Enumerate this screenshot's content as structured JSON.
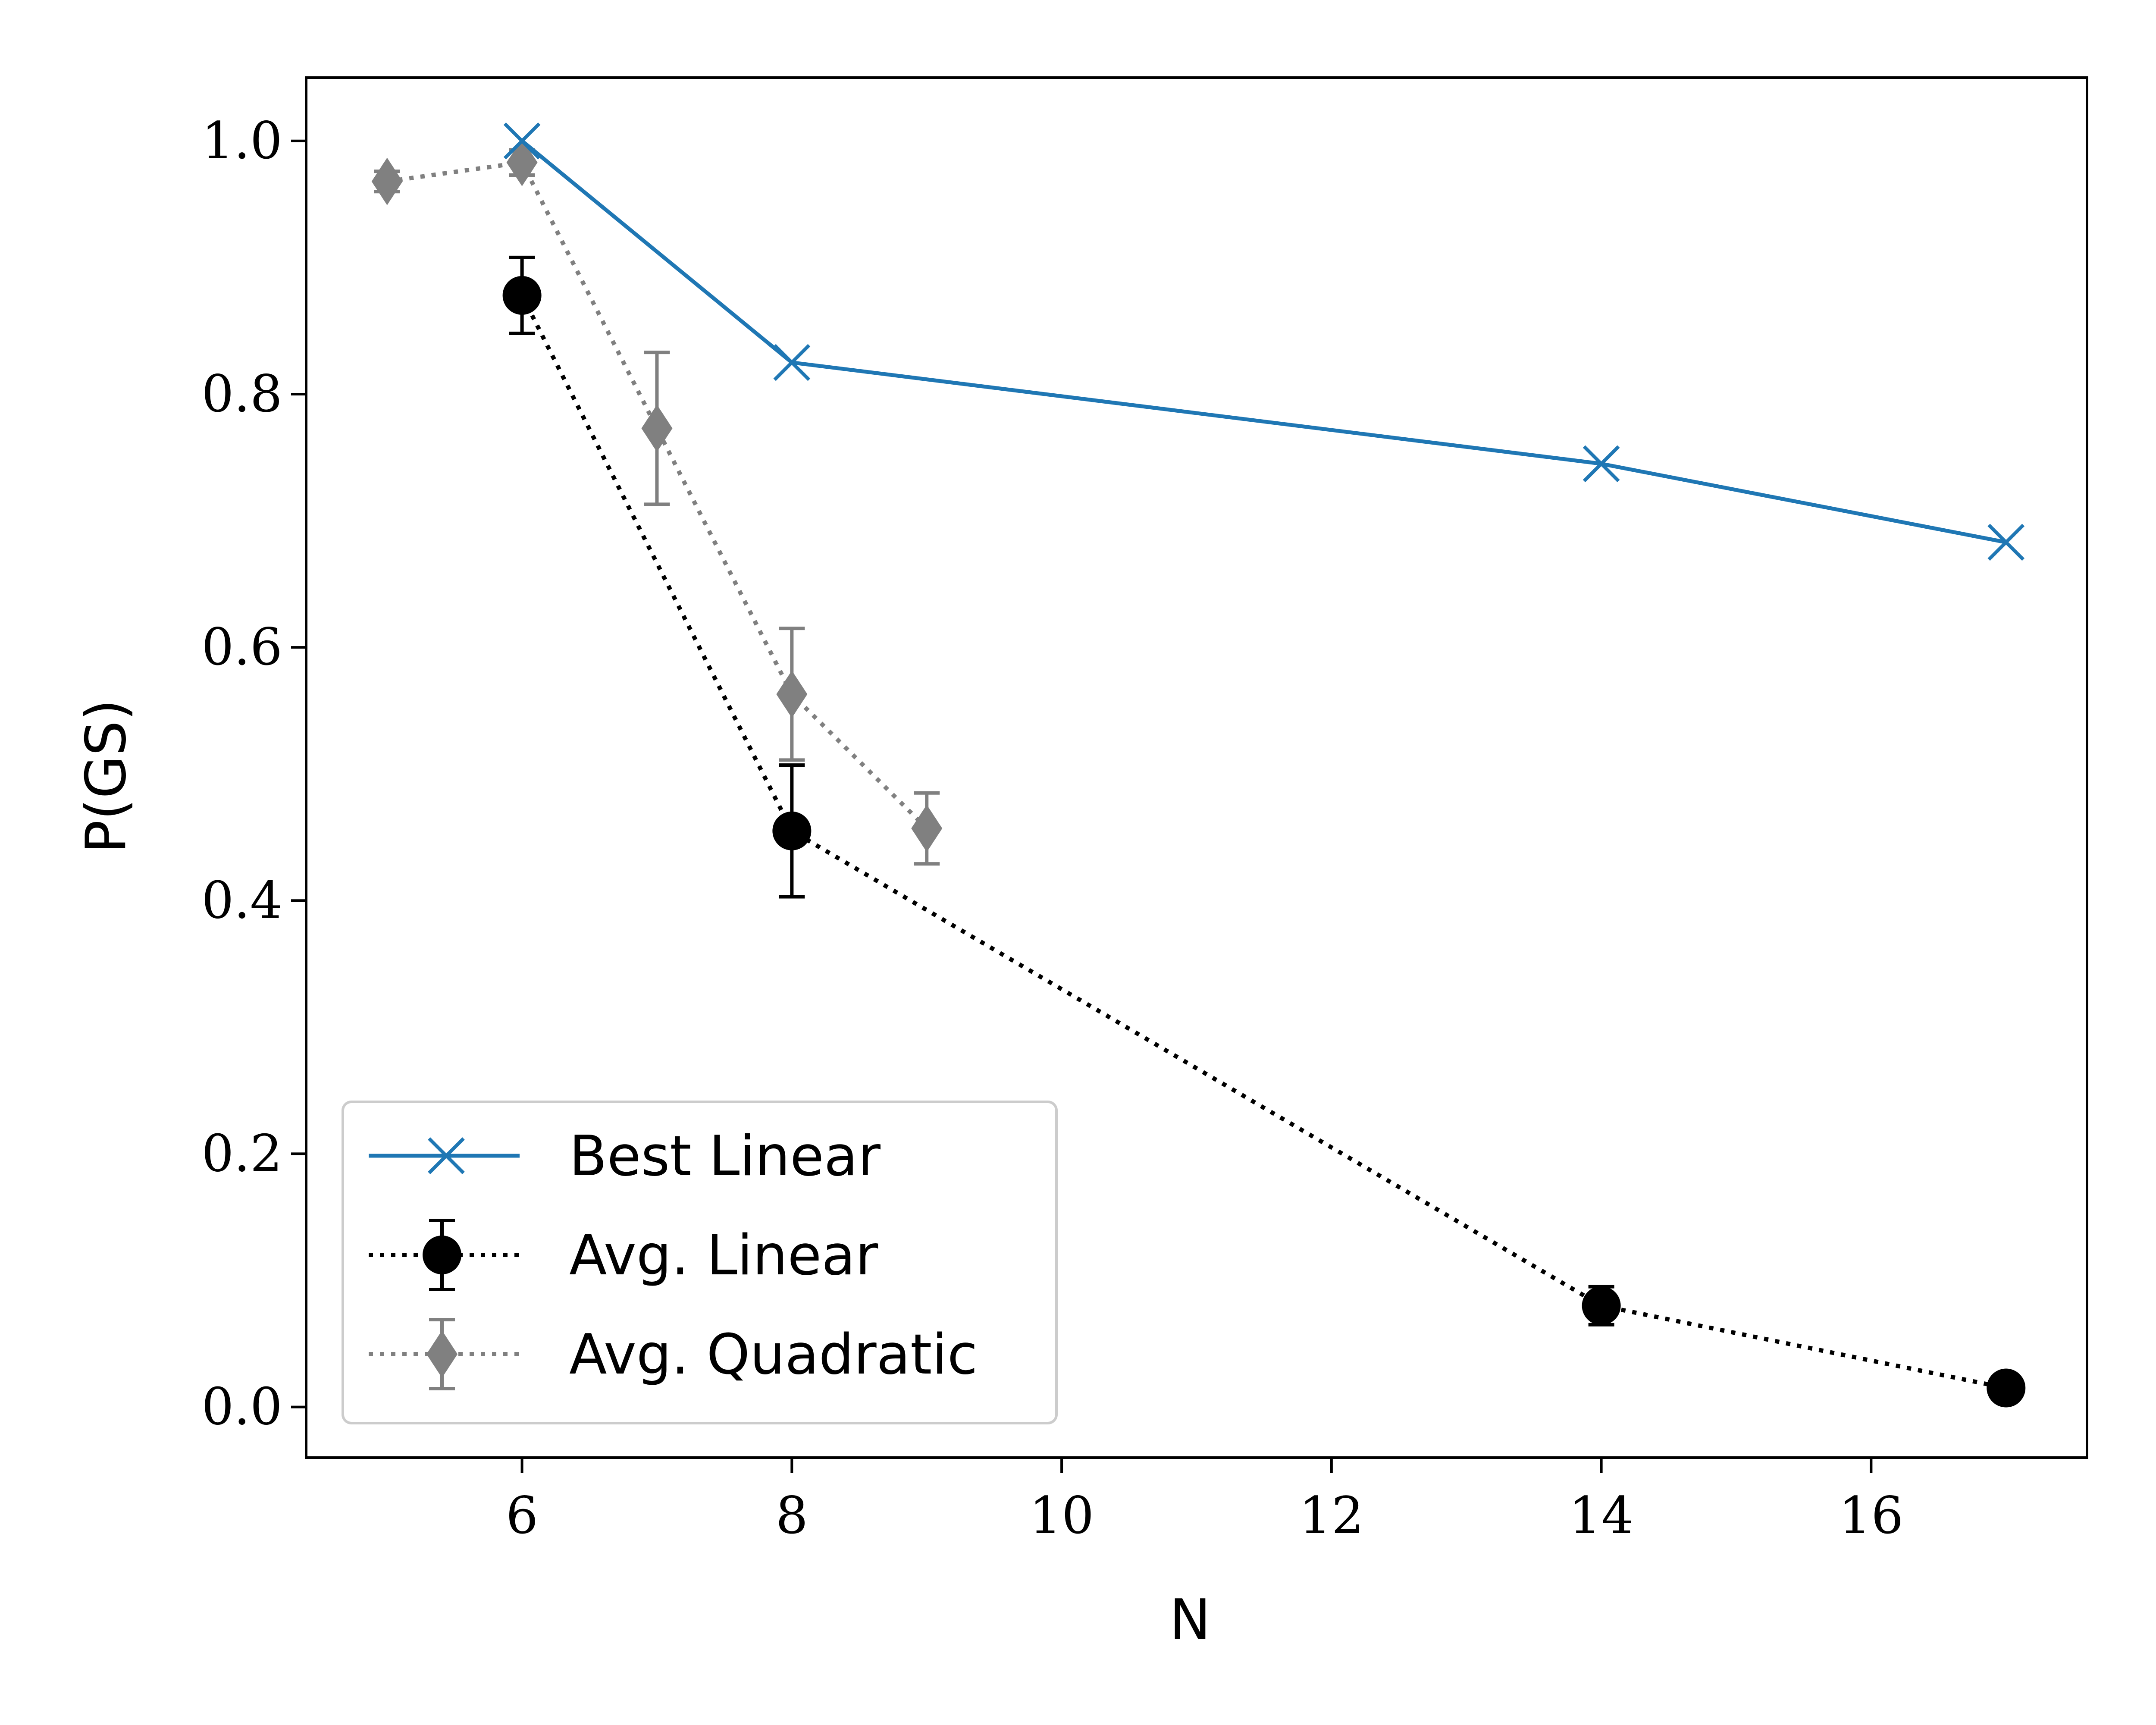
{
  "chart_data": {
    "type": "line",
    "title": "",
    "xlabel": "N",
    "ylabel": "P(GS)",
    "xlim": [
      4.4,
      17.6
    ],
    "ylim": [
      -0.04,
      1.05
    ],
    "xticks": [
      6,
      8,
      10,
      12,
      14,
      16
    ],
    "xtick_labels": [
      "6",
      "8",
      "10",
      "12",
      "14",
      "16"
    ],
    "yticks": [
      0.0,
      0.2,
      0.4,
      0.6,
      0.8,
      1.0
    ],
    "ytick_labels": [
      "0.0",
      "0.2",
      "0.4",
      "0.6",
      "0.8",
      "1.0"
    ],
    "grid": false,
    "legend_position": "lower-left",
    "series": [
      {
        "name": "Best Linear",
        "color": "#1f77b4",
        "line_style": "solid",
        "marker": "x",
        "x": [
          6,
          8,
          14,
          17
        ],
        "y": [
          1.0,
          0.825,
          0.745,
          0.683
        ],
        "yerr": null
      },
      {
        "name": "Avg. Linear",
        "color": "#000000",
        "line_style": "dotted",
        "marker": "circle",
        "x": [
          6,
          8,
          14,
          17
        ],
        "y": [
          0.878,
          0.455,
          0.08,
          0.015
        ],
        "yerr": [
          0.03,
          0.052,
          0.015,
          0.005
        ]
      },
      {
        "name": "Avg. Quadratic",
        "color": "#808080",
        "line_style": "dotted",
        "marker": "diamond",
        "x": [
          5,
          6,
          7,
          8,
          9
        ],
        "y": [
          0.968,
          0.983,
          0.773,
          0.563,
          0.457
        ],
        "yerr": [
          0.008,
          0.01,
          0.06,
          0.052,
          0.028
        ]
      }
    ]
  }
}
